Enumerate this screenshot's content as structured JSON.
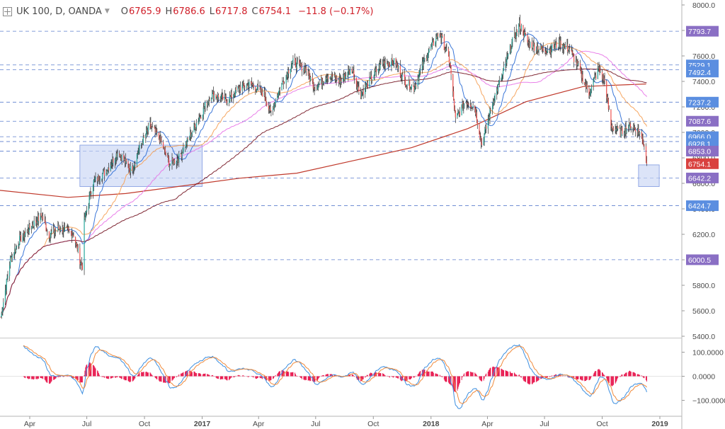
{
  "header": {
    "symbol": "UK 100, D, OANDA",
    "open_label": "O",
    "open": "6765.9",
    "high_label": "H",
    "high": "6786.6",
    "low_label": "L",
    "low": "6717.8",
    "close_label": "C",
    "close": "6754.1",
    "change": "−11.8 (−0.17%)"
  },
  "colors": {
    "up": "#26a69a",
    "down": "#ef5350",
    "bar": "#2b2b2b",
    "ma_fast": "#2f6fd6",
    "ma_mid": "#f5a25a",
    "ma_slow": "#e879e8",
    "ma_200": "#7a1f2b",
    "ma_long": "#c0392b",
    "level_line": "#4a6fc8",
    "zone": "#c9d6f5",
    "macd_line": "#3d8fe0",
    "signal_line": "#f08a3c",
    "hist": "#e8194f",
    "badge_purple": "#8a6fc4",
    "badge_blue": "#5b8ee0",
    "badge_red": "#d9413f"
  },
  "chart_data": [
    {
      "type": "candlestick",
      "title": "UK 100, D, OANDA",
      "xlabel": "",
      "ylabel": "",
      "ylim": [
        5400,
        8000
      ],
      "y_ticks": [
        "5400.0",
        "5600.0",
        "5800.0",
        "6000.0",
        "6200.0",
        "6400.0",
        "6600.0",
        "6800.0",
        "7000.0",
        "7200.0",
        "7400.0",
        "7600.0",
        "7800.0",
        "8000.0"
      ],
      "x_ticks": [
        "Apr",
        "Jul",
        "Oct",
        "2017",
        "Apr",
        "Jul",
        "Oct",
        "2018",
        "Apr",
        "Jul",
        "Oct",
        "2019"
      ],
      "x_bold": [
        "2017",
        "2018",
        "2019"
      ],
      "last_price": 6754.1,
      "price_path": [
        [
          "2016-02-15",
          5550
        ],
        [
          "2016-03-01",
          6000
        ],
        [
          "2016-03-15",
          6150
        ],
        [
          "2016-04-01",
          6250
        ],
        [
          "2016-04-20",
          6350
        ],
        [
          "2016-05-01",
          6200
        ],
        [
          "2016-05-20",
          6250
        ],
        [
          "2016-06-10",
          6200
        ],
        [
          "2016-06-20",
          6000
        ],
        [
          "2016-06-24",
          5950
        ],
        [
          "2016-06-27",
          6300
        ],
        [
          "2016-07-10",
          6600
        ],
        [
          "2016-08-01",
          6700
        ],
        [
          "2016-08-20",
          6850
        ],
        [
          "2016-09-10",
          6700
        ],
        [
          "2016-09-25",
          6900
        ],
        [
          "2016-10-10",
          7050
        ],
        [
          "2016-10-25",
          6950
        ],
        [
          "2016-11-10",
          6750
        ],
        [
          "2016-11-25",
          6800
        ],
        [
          "2016-12-10",
          6950
        ],
        [
          "2016-12-31",
          7150
        ],
        [
          "2017-01-15",
          7300
        ],
        [
          "2017-02-10",
          7250
        ],
        [
          "2017-03-01",
          7350
        ],
        [
          "2017-03-20",
          7380
        ],
        [
          "2017-04-10",
          7300
        ],
        [
          "2017-04-20",
          7150
        ],
        [
          "2017-05-05",
          7350
        ],
        [
          "2017-05-25",
          7550
        ],
        [
          "2017-06-15",
          7500
        ],
        [
          "2017-06-30",
          7350
        ],
        [
          "2017-07-20",
          7450
        ],
        [
          "2017-08-10",
          7400
        ],
        [
          "2017-08-28",
          7500
        ],
        [
          "2017-09-10",
          7300
        ],
        [
          "2017-09-25",
          7400
        ],
        [
          "2017-10-15",
          7550
        ],
        [
          "2017-11-05",
          7550
        ],
        [
          "2017-11-20",
          7400
        ],
        [
          "2017-12-05",
          7350
        ],
        [
          "2017-12-20",
          7550
        ],
        [
          "2018-01-10",
          7750
        ],
        [
          "2018-01-15",
          7780
        ],
        [
          "2018-01-31",
          7550
        ],
        [
          "2018-02-09",
          7100
        ],
        [
          "2018-02-25",
          7250
        ],
        [
          "2018-03-12",
          7200
        ],
        [
          "2018-03-23",
          6900
        ],
        [
          "2018-04-10",
          7250
        ],
        [
          "2018-04-25",
          7450
        ],
        [
          "2018-05-10",
          7700
        ],
        [
          "2018-05-22",
          7850
        ],
        [
          "2018-06-05",
          7700
        ],
        [
          "2018-06-25",
          7650
        ],
        [
          "2018-07-10",
          7650
        ],
        [
          "2018-07-25",
          7700
        ],
        [
          "2018-08-10",
          7650
        ],
        [
          "2018-08-25",
          7500
        ],
        [
          "2018-09-10",
          7300
        ],
        [
          "2018-09-25",
          7500
        ],
        [
          "2018-10-05",
          7400
        ],
        [
          "2018-10-15",
          7050
        ],
        [
          "2018-10-30",
          7000
        ],
        [
          "2018-11-15",
          7050
        ],
        [
          "2018-11-30",
          7000
        ],
        [
          "2018-12-07",
          6900
        ],
        [
          "2018-12-11",
          6754
        ]
      ],
      "price_levels": [
        {
          "value": 7793.7,
          "label": "7793.7",
          "badge": "purple"
        },
        {
          "value": 7529.1,
          "label": "7529.1",
          "badge": "blue"
        },
        {
          "value": 7492.4,
          "label": "7492.4",
          "badge": "blue"
        },
        {
          "value": 7237.2,
          "label": "7237.2",
          "badge": "blue"
        },
        {
          "value": 7087.6,
          "label": "7087.6",
          "badge": "purple"
        },
        {
          "value": 6966.0,
          "label": "6966.0",
          "badge": "blue"
        },
        {
          "value": 6928.1,
          "label": "6928.1",
          "badge": "blue"
        },
        {
          "value": 6853.0,
          "label": "6853.0",
          "badge": "purple"
        },
        {
          "value": 6754.1,
          "label": "6754.1",
          "badge": "red"
        },
        {
          "value": 6642.2,
          "label": "6642.2",
          "badge": "purple"
        },
        {
          "value": 6424.7,
          "label": "6424.7",
          "badge": "blue"
        },
        {
          "value": 6000.5,
          "label": "6000.5",
          "badge": "purple"
        }
      ],
      "zones": [
        {
          "from": "2016-06-20",
          "to": "2017-01-01",
          "low": 6575,
          "high": 6900
        },
        {
          "from": "2018-11-28",
          "to": "2018-12-31",
          "low": 6575,
          "high": 6745
        }
      ],
      "moving_averages": [
        {
          "key": "ma_fast",
          "period": 20
        },
        {
          "key": "ma_mid",
          "period": 50
        },
        {
          "key": "ma_slow",
          "period": 100
        },
        {
          "key": "ma_200",
          "period": 200
        }
      ],
      "long_ma": [
        [
          "2016-01-15",
          6560
        ],
        [
          "2016-06-01",
          6490
        ],
        [
          "2016-09-01",
          6520
        ],
        [
          "2016-12-01",
          6580
        ],
        [
          "2017-03-01",
          6640
        ],
        [
          "2017-06-01",
          6680
        ],
        [
          "2017-09-01",
          6780
        ],
        [
          "2017-12-01",
          6880
        ],
        [
          "2018-03-01",
          7030
        ],
        [
          "2018-06-01",
          7240
        ],
        [
          "2018-09-01",
          7360
        ],
        [
          "2018-12-10",
          7380
        ]
      ]
    },
    {
      "type": "macd",
      "ylim": [
        -120,
        150
      ],
      "y_ticks": [
        "100.0000",
        "0.0000",
        "−100.0000"
      ]
    }
  ]
}
